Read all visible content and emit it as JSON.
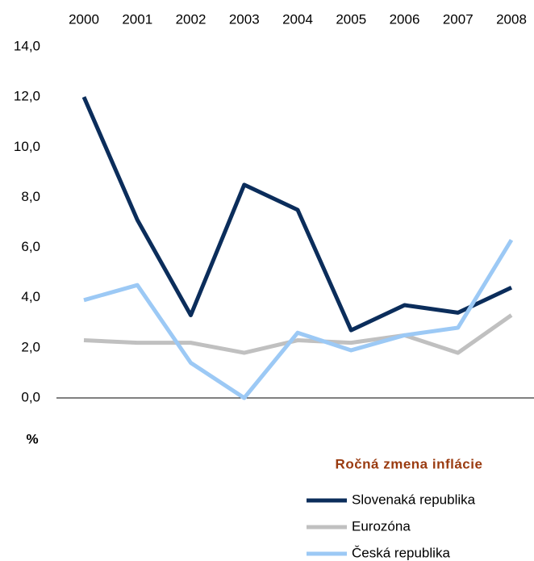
{
  "chart_data": {
    "type": "line",
    "title": "Ročná zmena inflácie",
    "y_label": "%",
    "categories": [
      "2000",
      "2001",
      "2002",
      "2003",
      "2004",
      "2005",
      "2006",
      "2007",
      "2008"
    ],
    "series": [
      {
        "name": "Slovenaká republika",
        "color": "#0b2d5b",
        "values": [
          12.0,
          7.1,
          3.3,
          8.5,
          7.5,
          2.7,
          3.7,
          3.4,
          4.4
        ]
      },
      {
        "name": "Eurozóna",
        "color": "#c0c0c0",
        "values": [
          2.3,
          2.2,
          2.2,
          1.8,
          2.3,
          2.2,
          2.5,
          1.8,
          3.3
        ]
      },
      {
        "name": "Česká republika",
        "color": "#9cc9f5",
        "values": [
          3.9,
          4.5,
          1.4,
          0.0,
          2.6,
          1.9,
          2.5,
          2.8,
          6.3
        ]
      }
    ],
    "ylim": [
      0,
      14
    ],
    "yticks": [
      {
        "value": 0,
        "label": "0,0"
      },
      {
        "value": 2,
        "label": "2,0"
      },
      {
        "value": 4,
        "label": "4,0"
      },
      {
        "value": 6,
        "label": "6,0"
      },
      {
        "value": 8,
        "label": "8,0"
      },
      {
        "value": 10,
        "label": "10,0"
      },
      {
        "value": 12,
        "label": "12,0"
      },
      {
        "value": 14,
        "label": "14,0"
      }
    ]
  }
}
